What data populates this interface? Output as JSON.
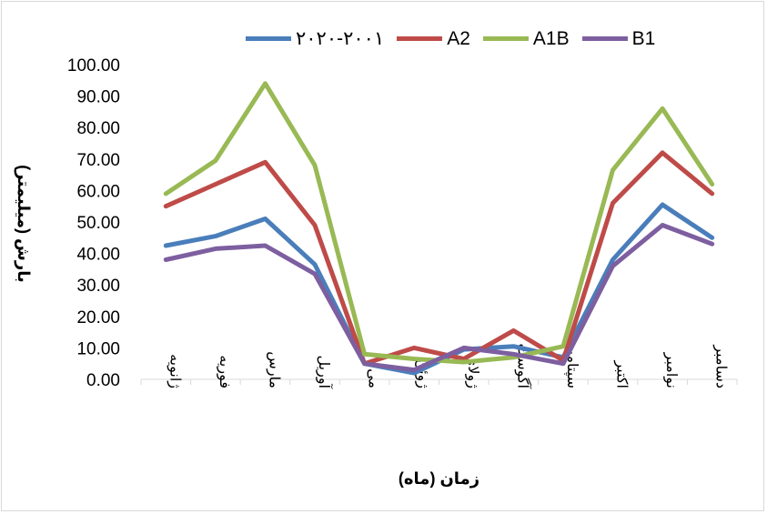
{
  "chart_data": {
    "type": "line",
    "xlabel": "زمان (ماه)",
    "ylabel": "بارش (میلیمتر)",
    "ylim": [
      0,
      100
    ],
    "yticks": [
      "0.00",
      "10.00",
      "20.00",
      "30.00",
      "40.00",
      "50.00",
      "60.00",
      "70.00",
      "80.00",
      "90.00",
      "100.00"
    ],
    "grid": false,
    "legend_position": "top",
    "categories": [
      "ژانویه",
      "فوریه",
      "مارس",
      "آوریل",
      "می",
      "ژوئن",
      "ژولای",
      "آگوست",
      "سپتامبر",
      "اکتبر",
      "نوامبر",
      "دسامبر"
    ],
    "series": [
      {
        "name": "۲۰۲۰-۲۰۰۱",
        "color": "#4a7ebb",
        "values": [
          42.5,
          45.5,
          51.0,
          36.5,
          5.0,
          2.0,
          9.5,
          10.5,
          7.0,
          38.0,
          55.5,
          45.0
        ]
      },
      {
        "name": "A2",
        "color": "#be4b48",
        "values": [
          55.0,
          62.0,
          69.0,
          49.0,
          5.0,
          10.0,
          6.5,
          15.5,
          6.0,
          56.0,
          72.0,
          59.0
        ]
      },
      {
        "name": "A1B",
        "color": "#98b954",
        "values": [
          59.0,
          69.5,
          94.0,
          68.0,
          8.0,
          6.5,
          5.5,
          7.0,
          10.5,
          66.5,
          86.0,
          62.0
        ]
      },
      {
        "name": "B1",
        "color": "#7d5fa0",
        "values": [
          38.0,
          41.5,
          42.5,
          33.5,
          5.0,
          3.0,
          10.0,
          8.0,
          5.0,
          36.0,
          49.0,
          43.0
        ]
      }
    ]
  }
}
